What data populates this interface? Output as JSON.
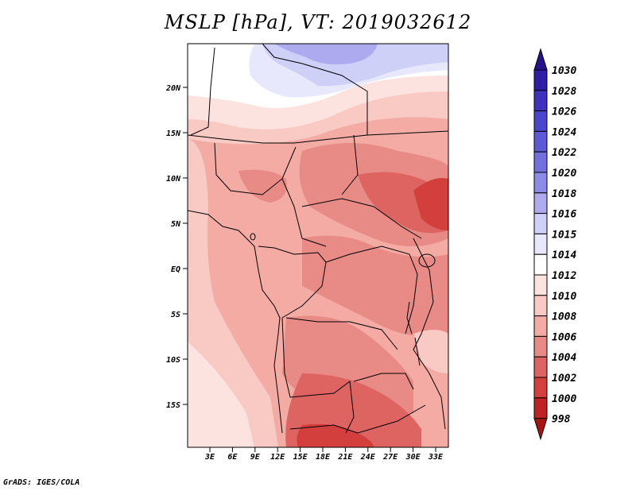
{
  "title": "MSLP [hPa], VT: 2019032612",
  "credit": "GrADS: IGES/COLA",
  "map": {
    "lat_labels": [
      "20N",
      "15N",
      "10N",
      "5N",
      "EQ",
      "5S",
      "10S",
      "15S"
    ],
    "lon_labels": [
      "3E",
      "6E",
      "9E",
      "12E",
      "15E",
      "18E",
      "21E",
      "24E",
      "27E",
      "30E",
      "33E"
    ]
  },
  "colorbar": {
    "levels": [
      "1030",
      "1028",
      "1026",
      "1024",
      "1022",
      "1020",
      "1018",
      "1016",
      "1015",
      "1014",
      "1012",
      "1010",
      "1008",
      "1006",
      "1004",
      "1002",
      "1000",
      "998"
    ],
    "colors": [
      "#26108f",
      "#2f1fa6",
      "#3d31bd",
      "#4a45cc",
      "#5c5ad9",
      "#7270e0",
      "#8c8be8",
      "#adaaf0",
      "#cfd0f8",
      "#e8e8fc",
      "#ffffff",
      "#fde3df",
      "#f9c9c3",
      "#f3aba4",
      "#e88a86",
      "#de6462",
      "#d23f3d",
      "#bf2222",
      "#a81414"
    ]
  }
}
